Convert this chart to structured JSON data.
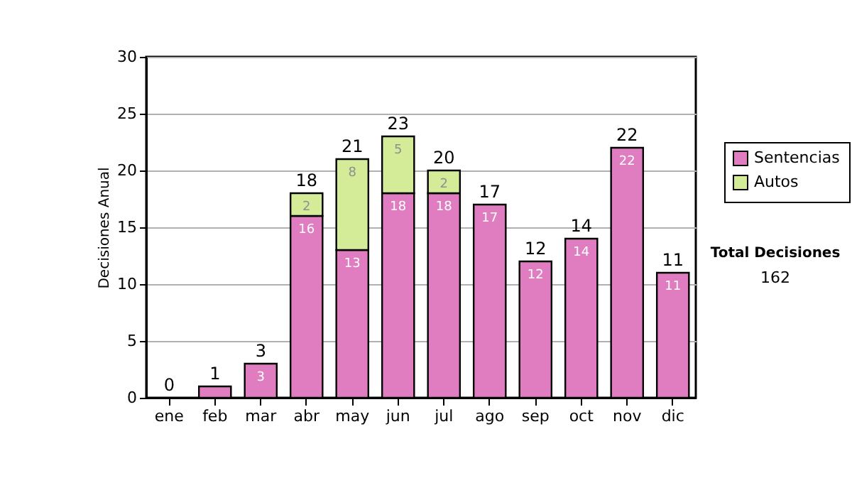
{
  "chart_data": {
    "type": "bar",
    "stacked": true,
    "ylabel": "Decisiones Anual",
    "categories": [
      "ene",
      "feb",
      "mar",
      "abr",
      "may",
      "jun",
      "jul",
      "ago",
      "sep",
      "oct",
      "nov",
      "dic"
    ],
    "series": [
      {
        "name": "Sentencias",
        "color": "#e07cc0",
        "values": [
          0,
          1,
          3,
          16,
          13,
          18,
          18,
          17,
          12,
          14,
          22,
          11
        ],
        "value_labels": [
          null,
          null,
          "3",
          "16",
          "13",
          "18",
          "18",
          "17",
          "12",
          "14",
          "22",
          "11"
        ]
      },
      {
        "name": "Autos",
        "color": "#d4ec98",
        "values": [
          null,
          null,
          null,
          2,
          8,
          5,
          2,
          null,
          null,
          null,
          null,
          null
        ],
        "value_labels": [
          null,
          null,
          null,
          "2",
          "8",
          "5",
          "2",
          null,
          null,
          null,
          null,
          null
        ]
      }
    ],
    "totals": [
      "0",
      "1",
      "3",
      "18",
      "21",
      "23",
      "20",
      "17",
      "12",
      "14",
      "22",
      "11"
    ],
    "ylim": [
      0,
      30
    ],
    "yticks": [
      0,
      5,
      10,
      15,
      20,
      25,
      30
    ],
    "grid": "y",
    "legend": "right",
    "annotations": [
      "Total Decisiones",
      "162"
    ]
  }
}
